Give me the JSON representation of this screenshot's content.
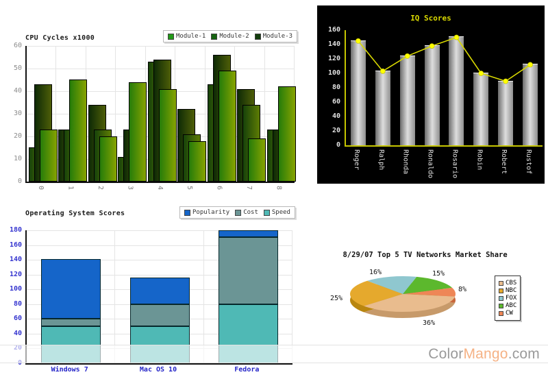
{
  "watermark": {
    "part_color": "Color",
    "part_mango": "Mango",
    "part_dotcom": ".com"
  },
  "chart_data": [
    {
      "type": "bar",
      "title": "CPU Cycles x1000",
      "categories": [
        "0",
        "1",
        "2",
        "3",
        "4",
        "5",
        "6",
        "7",
        "8"
      ],
      "series": [
        {
          "name": "Module-1",
          "values": [
            23,
            45,
            20,
            44,
            41,
            18,
            49,
            19,
            42
          ],
          "legend_color": "#229a18",
          "gradient": [
            "#267c0a",
            "#87a300"
          ]
        },
        {
          "name": "Module-2",
          "values": [
            15,
            23,
            23,
            11,
            53,
            21,
            43,
            34,
            23
          ],
          "legend_color": "#156310",
          "gradient": [
            "#17420a",
            "#5e7c04"
          ]
        },
        {
          "name": "Module-3",
          "values": [
            43,
            23,
            34,
            23,
            54,
            32,
            56,
            41,
            23
          ],
          "legend_color": "#123d0c",
          "gradient": [
            "#0e2a06",
            "#4e5e08"
          ]
        }
      ],
      "slot_series": [
        [
          1,
          2,
          0
        ],
        [
          2,
          1,
          0
        ],
        [
          2,
          1,
          0
        ],
        [
          1,
          2,
          0
        ],
        [
          1,
          2,
          0
        ],
        [
          2,
          1,
          0
        ],
        [
          1,
          2,
          0
        ],
        [
          2,
          1,
          0
        ],
        [
          1,
          2,
          0
        ]
      ],
      "ylim": [
        0,
        60
      ],
      "y_step": 10,
      "grid": true,
      "legend_position": "top-right"
    },
    {
      "type": "bar-line",
      "title": "IQ Scores",
      "categories": [
        "Roger",
        "Ralph",
        "Rhonda",
        "Ronaldo",
        "Rosario",
        "Robin",
        "Robert",
        "Rustof"
      ],
      "values": [
        145,
        103,
        124,
        138,
        150,
        100,
        89,
        112
      ],
      "ylim": [
        0,
        160
      ],
      "y_step": 20,
      "grid": false,
      "colors": {
        "background": "#000000",
        "bar_mid": "#dedede",
        "bar_edge": "#6b6b6b",
        "line": "#d9d900",
        "marker": "#ffff00",
        "axis": "#c6c600",
        "tick_text": "#e0e0e0",
        "title_text": "#d9d900"
      }
    },
    {
      "type": "stacked-bar",
      "title": "Operating System Scores",
      "categories": [
        "Windows 7",
        "Mac OS 10",
        "Fedora"
      ],
      "series": [
        {
          "name": "Popularity",
          "color": "#1565c9",
          "values": [
            81,
            36,
            9
          ]
        },
        {
          "name": "Cost",
          "color": "#6b9595",
          "values": [
            10,
            30,
            91
          ]
        },
        {
          "name": "Speed",
          "color": "#4fb9b5",
          "values": [
            50,
            50,
            80
          ]
        }
      ],
      "stack_order_bottom_up": [
        2,
        1,
        0
      ],
      "totals": [
        141,
        116,
        180
      ],
      "ylim": [
        0,
        180
      ],
      "y_step": 20,
      "grid": true,
      "legend_position": "top-right",
      "tick_color": "#3535cf",
      "category_color": "#2525c8"
    },
    {
      "type": "pie",
      "title": "8/29/07 Top 5 TV Networks Market Share",
      "slices": [
        {
          "label": "CBS",
          "pct": 36,
          "pct_label": "36%",
          "color": "#e9bc8e",
          "side_color": "#c79a6a"
        },
        {
          "label": "NBC",
          "pct": 25,
          "pct_label": "25%",
          "color": "#e5a92d",
          "side_color": "#b9860f"
        },
        {
          "label": "FOX",
          "pct": 16,
          "pct_label": "16%",
          "color": "#8fc7cf",
          "side_color": "#6fa6ae"
        },
        {
          "label": "ABC",
          "pct": 15,
          "pct_label": "15%",
          "color": "#5cb82d",
          "side_color": "#479215"
        },
        {
          "label": "CW",
          "pct": 8,
          "pct_label": "8%",
          "color": "#ee8656",
          "side_color": "#c9663a"
        }
      ],
      "start_angle_deg": -8,
      "draw_order_ccw": [
        "CW",
        "ABC",
        "FOX",
        "NBC",
        "CBS"
      ],
      "legend_order": [
        "CBS",
        "NBC",
        "FOX",
        "ABC",
        "CW"
      ]
    }
  ]
}
